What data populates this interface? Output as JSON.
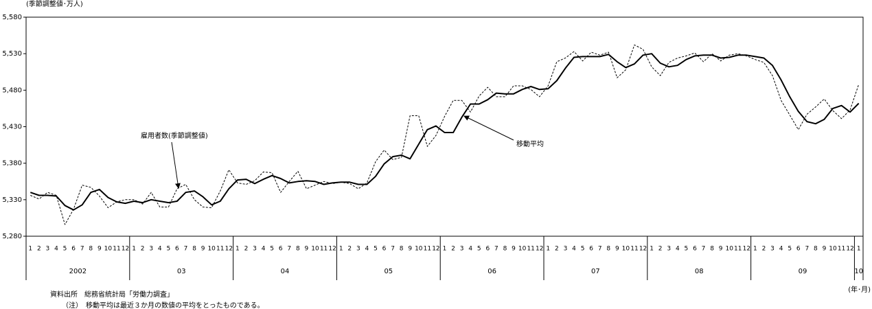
{
  "chart_data": {
    "type": "line",
    "y_unit_label": "(季節調整値･万人)",
    "x_unit_label": "(年･月)",
    "source": "資料出所　総務省統計局「労働力調査」",
    "note": "（注）　移動平均は最近３か月の数値の平均をとったものである。",
    "categories": [
      "1",
      "2",
      "3",
      "4",
      "5",
      "6",
      "7",
      "8",
      "9",
      "10",
      "11",
      "12",
      "1",
      "2",
      "3",
      "4",
      "5",
      "6",
      "7",
      "8",
      "9",
      "10",
      "11",
      "12",
      "1",
      "2",
      "3",
      "4",
      "5",
      "6",
      "7",
      "8",
      "9",
      "10",
      "11",
      "12",
      "1",
      "2",
      "3",
      "4",
      "5",
      "6",
      "7",
      "8",
      "9",
      "10",
      "11",
      "12",
      "1",
      "2",
      "3",
      "4",
      "5",
      "6",
      "7",
      "8",
      "9",
      "10",
      "11",
      "12",
      "1",
      "2",
      "3",
      "4",
      "5",
      "6",
      "7",
      "8",
      "9",
      "10",
      "11",
      "12",
      "1",
      "2",
      "3",
      "4",
      "5",
      "6",
      "7",
      "8",
      "9",
      "10",
      "11",
      "12",
      "1",
      "2",
      "3",
      "4",
      "5",
      "6",
      "7",
      "8",
      "9",
      "10",
      "11",
      "12",
      "1"
    ],
    "groups": [
      "2002",
      "03",
      "04",
      "05",
      "06",
      "07",
      "08",
      "09",
      "10"
    ],
    "series": [
      {
        "name": "雇用者数(季節調整値)",
        "color": "#000000",
        "line_style": "dashed",
        "values": [
          5336,
          5331,
          5340,
          5336,
          5296,
          5317,
          5350,
          5347,
          5335,
          5319,
          5327,
          5330,
          5330,
          5324,
          5340,
          5320,
          5320,
          5345,
          5351,
          5330,
          5320,
          5319,
          5342,
          5371,
          5353,
          5351,
          5356,
          5368,
          5367,
          5340,
          5355,
          5369,
          5345,
          5350,
          5355,
          5352,
          5354,
          5352,
          5345,
          5353,
          5382,
          5398,
          5385,
          5388,
          5445,
          5445,
          5403,
          5418,
          5444,
          5466,
          5466,
          5450,
          5472,
          5484,
          5471,
          5471,
          5486,
          5486,
          5481,
          5471,
          5486,
          5519,
          5524,
          5533,
          5520,
          5532,
          5528,
          5532,
          5497,
          5508,
          5542,
          5536,
          5512,
          5500,
          5518,
          5524,
          5527,
          5531,
          5519,
          5530,
          5520,
          5528,
          5530,
          5527,
          5522,
          5518,
          5500,
          5466,
          5446,
          5426,
          5447,
          5457,
          5468,
          5452,
          5441,
          5453,
          5488
        ]
      },
      {
        "name": "移動平均",
        "color": "#000000",
        "line_style": "solid",
        "values": [
          5340,
          5336,
          5336,
          5335,
          5322,
          5316,
          5323,
          5340,
          5344,
          5333,
          5327,
          5325,
          5328,
          5326,
          5330,
          5328,
          5326,
          5328,
          5340,
          5342,
          5334,
          5323,
          5328,
          5345,
          5357,
          5358,
          5352,
          5358,
          5363,
          5359,
          5353,
          5355,
          5356,
          5355,
          5351,
          5353,
          5354,
          5354,
          5351,
          5351,
          5362,
          5379,
          5389,
          5391,
          5386,
          5406,
          5426,
          5431,
          5422,
          5422,
          5443,
          5461,
          5461,
          5467,
          5476,
          5475,
          5475,
          5481,
          5485,
          5481,
          5482,
          5493,
          5510,
          5525,
          5526,
          5526,
          5526,
          5529,
          5519,
          5511,
          5516,
          5528,
          5530,
          5517,
          5512,
          5514,
          5522,
          5527,
          5528,
          5528,
          5524,
          5525,
          5528,
          5528,
          5526,
          5524,
          5514,
          5494,
          5471,
          5451,
          5437,
          5434,
          5440,
          5455,
          5459,
          5450,
          5462
        ]
      }
    ],
    "ylim": [
      5280,
      5580
    ],
    "yticks": [
      {
        "value": 5280,
        "label": "5,280"
      },
      {
        "value": 5330,
        "label": "5,330"
      },
      {
        "value": 5380,
        "label": "5,380"
      },
      {
        "value": 5430,
        "label": "5,430"
      },
      {
        "value": 5480,
        "label": "5,480"
      },
      {
        "value": 5530,
        "label": "5,530"
      },
      {
        "value": 5580,
        "label": "5,580"
      }
    ]
  }
}
